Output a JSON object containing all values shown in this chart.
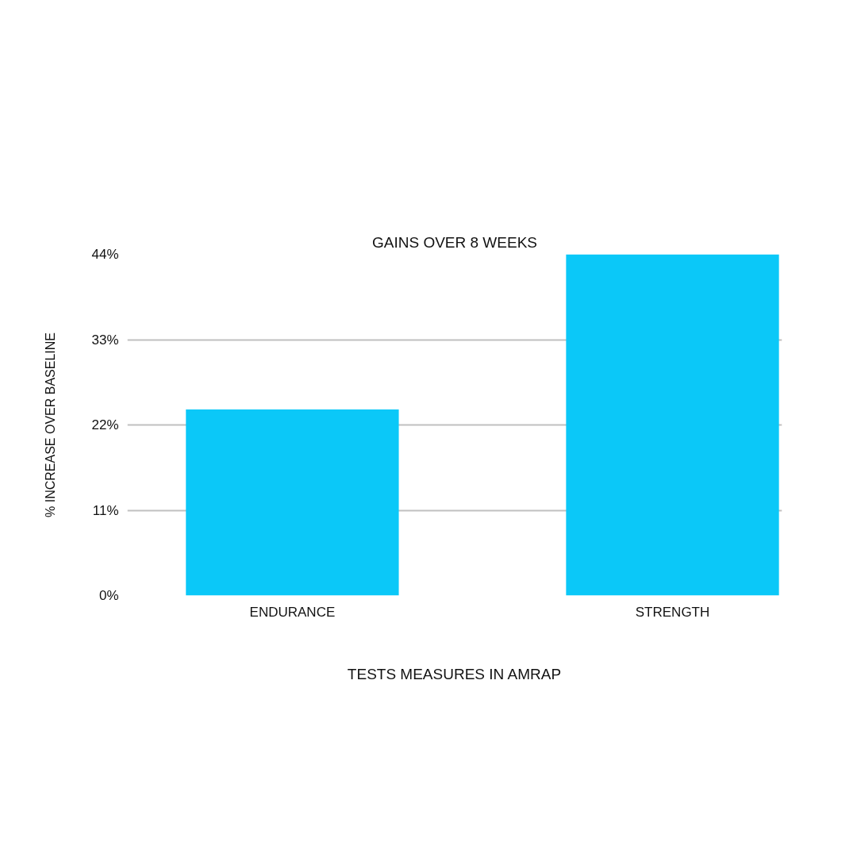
{
  "chart_data": {
    "type": "bar",
    "title": "GAINS OVER 8 WEEKS",
    "xlabel": "TESTS MEASURES IN AMRAP",
    "ylabel": "% INCREASE OVER BASELINE",
    "categories": [
      "ENDURANCE",
      "STRENGTH"
    ],
    "values": [
      24,
      44
    ],
    "color": "#0bc8f8",
    "ylim": [
      0,
      44
    ],
    "yticks": [
      {
        "value": 0,
        "label": "0%"
      },
      {
        "value": 11,
        "label": "11%"
      },
      {
        "value": 22,
        "label": "22%"
      },
      {
        "value": 33,
        "label": "33%"
      },
      {
        "value": 44,
        "label": "44%"
      }
    ],
    "grid": "y"
  }
}
